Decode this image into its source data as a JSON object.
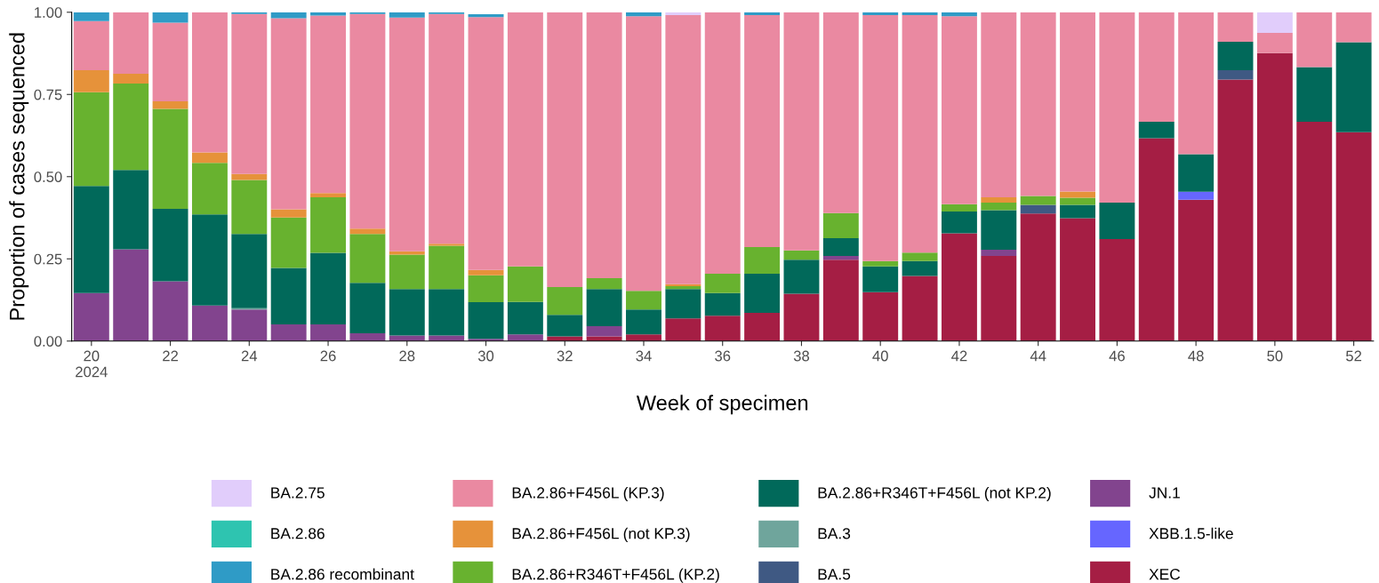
{
  "chart_data": {
    "type": "bar",
    "stacked": true,
    "xlabel": "Week of specimen",
    "ylabel": "Proportion of cases sequenced",
    "categories": [
      "20\n2024",
      null,
      "22",
      null,
      "24",
      null,
      "26",
      null,
      "28",
      null,
      "30",
      null,
      "32",
      null,
      "34",
      null,
      "36",
      null,
      "38",
      null,
      "40",
      null,
      "42",
      null,
      "44",
      null,
      "46",
      null,
      "48",
      null,
      "50",
      null,
      "52"
    ],
    "ylim": [
      0,
      1
    ],
    "yticks": [
      {
        "value": 0,
        "label": "0.00"
      },
      {
        "value": 0.25,
        "label": "0.25"
      },
      {
        "value": 0.5,
        "label": "0.50"
      },
      {
        "value": 0.75,
        "label": "0.75"
      },
      {
        "value": 1,
        "label": "1.00"
      }
    ],
    "legend": "bottom",
    "series": [
      {
        "name": "XEC",
        "color": "#a51e44",
        "values": [
          0,
          0,
          0,
          0,
          0,
          0,
          0,
          0,
          0,
          0,
          null,
          0,
          0.014,
          0.014,
          0.02,
          0.069,
          0.077,
          0.086,
          0.144,
          0.247,
          0.149,
          0.198,
          0.328,
          0.259,
          0.388,
          0.374,
          0.31,
          0.617,
          0.43,
          0.795,
          0.876,
          0.667,
          0.635
        ]
      },
      {
        "name": "XBB.1.5-like",
        "color": "#6666ff",
        "values": [
          0,
          0,
          0,
          0,
          0,
          0,
          0,
          0,
          0,
          0,
          0,
          0,
          0,
          0,
          0,
          0,
          0,
          0,
          0,
          0,
          0,
          0,
          0,
          0,
          0,
          0,
          0,
          0,
          0.024,
          0,
          0,
          0,
          0
        ]
      },
      {
        "name": "JN.1",
        "color": "#82448e",
        "values": [
          0.146,
          0.279,
          0.182,
          0.108,
          0.096,
          0.051,
          0.051,
          0.024,
          0.017,
          0.017,
          0.007,
          0.02,
          0,
          0.031,
          0,
          0,
          0,
          0,
          0,
          0.012,
          0,
          0,
          0,
          0.019,
          0,
          0,
          0,
          0,
          0,
          0,
          0,
          0,
          0
        ]
      },
      {
        "name": "BA.5",
        "color": "#3f5983",
        "values": [
          0,
          0,
          0,
          0,
          0,
          0,
          0,
          0,
          0,
          0,
          0,
          0,
          0,
          0,
          0,
          0,
          0,
          0,
          0,
          0,
          0,
          0,
          0,
          0,
          0.026,
          0,
          0,
          0,
          0,
          0.029,
          0,
          0,
          0
        ]
      },
      {
        "name": "BA.3",
        "color": "#6fa59c",
        "values": [
          0,
          0,
          0,
          0,
          0.004,
          0,
          0,
          0,
          0,
          0,
          0,
          0,
          0,
          0,
          0,
          0,
          0,
          0,
          0,
          0,
          0,
          0,
          0,
          0,
          0,
          0,
          0,
          0,
          0,
          0,
          0,
          0,
          0
        ]
      },
      {
        "name": "BA.2.86+R346T+F456L (not KP.2)",
        "color": "#01695a",
        "values": [
          0.326,
          0.241,
          0.22,
          0.277,
          0.226,
          0.171,
          0.217,
          0.153,
          0.141,
          0.141,
          0.111,
          0.099,
          0.066,
          0.113,
          0.076,
          0.089,
          0.069,
          0.119,
          0.103,
          0.054,
          0.078,
          0.045,
          0.066,
          0.12,
          0,
          0.04,
          0.111,
          0.05,
          0.114,
          0.086,
          0,
          0.166,
          0.274
        ]
      },
      {
        "name": "BA.2.86+R346T+F456L (KP.2)",
        "color": "#68b22f",
        "values": [
          0.285,
          0.263,
          0.304,
          0.157,
          0.164,
          0.154,
          0.169,
          0.149,
          0.105,
          0.132,
          0.082,
          0.108,
          0.084,
          0.033,
          0.057,
          0.009,
          0.059,
          0.081,
          0.029,
          0.076,
          0.016,
          0.026,
          0.022,
          0.023,
          0.027,
          0.022,
          0,
          0,
          0,
          0,
          0,
          0,
          0
        ]
      },
      {
        "name": "BA.2.86+F456L (not KP.3)",
        "color": "#e6923a",
        "values": [
          0.067,
          0.03,
          0.023,
          0.032,
          0.018,
          0.025,
          0.013,
          0.016,
          0.01,
          0.006,
          0.016,
          0,
          0,
          0,
          0,
          0.006,
          0,
          0,
          0,
          0,
          0,
          0,
          0,
          0.016,
          0,
          0.019,
          0,
          0,
          0,
          0,
          0,
          0,
          0
        ]
      },
      {
        "name": "BA.2.86+F456L (KP.3)",
        "color": "#ea89a1",
        "values": [
          0.149,
          0.187,
          0.239,
          0.426,
          0.487,
          0.581,
          0.54,
          0.653,
          0.711,
          0.699,
          0.769,
          0.773,
          0.836,
          0.809,
          0.835,
          0.818,
          0.795,
          0.705,
          0.724,
          0.611,
          0.748,
          0.722,
          0.572,
          0.563,
          0.559,
          0.545,
          0.579,
          0.333,
          0.432,
          0.09,
          0.061,
          0.167,
          0.091
        ]
      },
      {
        "name": "BA.2.86 recombinant",
        "color": "#2f9bc6",
        "values": [
          0.027,
          0,
          0.032,
          0,
          0.005,
          0.018,
          0.01,
          0.005,
          0.016,
          0.005,
          0.009,
          0,
          0,
          0,
          0.012,
          0,
          0,
          0.009,
          0,
          0,
          0.009,
          0.009,
          0.012,
          0,
          0,
          0,
          0,
          0,
          0,
          0,
          0,
          0,
          0
        ]
      },
      {
        "name": "BA.2.86",
        "color": "#2ec4b0",
        "values": [
          0,
          0,
          0,
          0,
          0,
          0,
          0,
          0,
          0,
          0,
          0,
          0,
          0,
          0,
          0,
          0,
          0,
          0,
          0,
          0,
          0,
          0,
          0,
          0,
          0,
          0,
          0,
          0,
          0,
          0,
          0,
          0,
          0
        ]
      },
      {
        "name": "BA.2.75",
        "color": "#e1cdfb",
        "values": [
          0,
          0,
          0,
          0,
          0,
          0,
          0,
          0,
          0,
          0,
          0,
          0,
          0,
          0,
          0,
          0.009,
          0,
          0,
          0,
          0,
          0,
          0,
          0,
          0,
          0,
          0,
          0,
          0,
          0,
          0,
          0.063,
          0,
          0
        ]
      }
    ]
  }
}
